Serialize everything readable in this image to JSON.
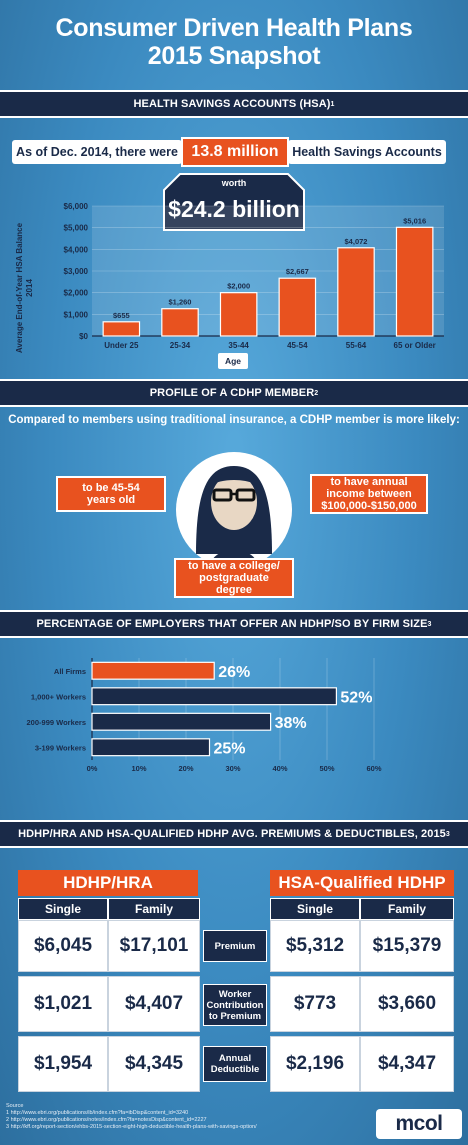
{
  "title": {
    "line1": "Consumer Driven Health Plans",
    "line2": "2015 Snapshot"
  },
  "sections": {
    "hsa": "HEALTH SAVINGS ACCOUNTS (HSA)",
    "hsa_ref": "1",
    "profile": "PROFILE OF A CDHP MEMBER",
    "profile_ref": "2",
    "employers": "PERCENTAGE OF EMPLOYERS THAT OFFER AN HDHP/SO BY FIRM SIZE",
    "employers_ref": "3",
    "premiums": "HDHP/HRA AND HSA-QUALIFIED HDHP AVG. PREMIUMS & DEDUCTIBLES, 2015",
    "premiums_ref": "3"
  },
  "hsa_banner": {
    "prefix": "As of Dec. 2014, there were",
    "count": "13.8 million",
    "suffix": "Health Savings Accounts",
    "worth": "worth",
    "amount": "$24.2 billion"
  },
  "chart_data": [
    {
      "type": "bar",
      "categories": [
        "Under 25",
        "25-34",
        "35-44",
        "45-54",
        "55-64",
        "65 or Older"
      ],
      "values": [
        655,
        1260,
        2000,
        2667,
        4072,
        5016
      ],
      "value_labels": [
        "$655",
        "$1,260",
        "$2,000",
        "$2,667",
        "$4,072",
        "$5,016"
      ],
      "ylabel_line1": "Average End-of-Year HSA Balance",
      "ylabel_line2": "2014",
      "xlabel": "Age",
      "yticks": [
        "$0",
        "$1,000",
        "$2,000",
        "$3,000",
        "$4,000",
        "$5,000",
        "$6,000"
      ],
      "ylim": [
        0,
        6000
      ],
      "color": "#e8521f"
    },
    {
      "type": "bar",
      "orientation": "horizontal",
      "categories": [
        "All Firms",
        "1,000+ Workers",
        "200-999 Workers",
        "3-199 Workers"
      ],
      "values": [
        26,
        52,
        38,
        25
      ],
      "value_labels": [
        "26%",
        "52%",
        "38%",
        "25%"
      ],
      "xticks": [
        "0%",
        "10%",
        "20%",
        "30%",
        "40%",
        "50%",
        "60%"
      ],
      "xlim": [
        0,
        60
      ],
      "colors": [
        "#e8521f",
        "#1a2a48",
        "#1a2a48",
        "#1a2a48"
      ]
    }
  ],
  "profile": {
    "intro": "Compared to members using traditional insurance, a CDHP member is more likely:",
    "trait_age_line1": "to be 45-54",
    "trait_age_line2": "years old",
    "trait_income_line1": "to have annual",
    "trait_income_line2": "income between",
    "trait_income_line3": "$100,000-$150,000",
    "trait_edu_line1": "to have a college/",
    "trait_edu_line2": "postgraduate",
    "trait_edu_line3": "degree"
  },
  "premiums": {
    "left_title": "HDHP/HRA",
    "right_title": "HSA-Qualified HDHP",
    "col_single": "Single",
    "col_family": "Family",
    "rows": [
      {
        "label_line1": "Premium",
        "label_line2": "",
        "label_line3": "",
        "hra_single": "$6,045",
        "hra_family": "$17,101",
        "hsa_single": "$5,312",
        "hsa_family": "$15,379"
      },
      {
        "label_line1": "Worker",
        "label_line2": "Contribution",
        "label_line3": "to Premium",
        "hra_single": "$1,021",
        "hra_family": "$4,407",
        "hsa_single": "$773",
        "hsa_family": "$3,660"
      },
      {
        "label_line1": "Annual",
        "label_line2": "Deductible",
        "label_line3": "",
        "hra_single": "$1,954",
        "hra_family": "$4,345",
        "hsa_single": "$2,196",
        "hsa_family": "$4,347"
      }
    ]
  },
  "sources": {
    "heading": "Source",
    "s1": "1  http://www.ebri.org/publications/ib/index.cfm?fa=ibDisp&content_id=3240",
    "s2": "2  http://www.ebri.org/publications/notes/index.cfm?fa=notesDisp&content_id=2227",
    "s3": "3  http://kff.org/report-section/ehbs-2015-section-eight-high-deductible-health-plans-with-savings-option/"
  },
  "logo": "mcol"
}
